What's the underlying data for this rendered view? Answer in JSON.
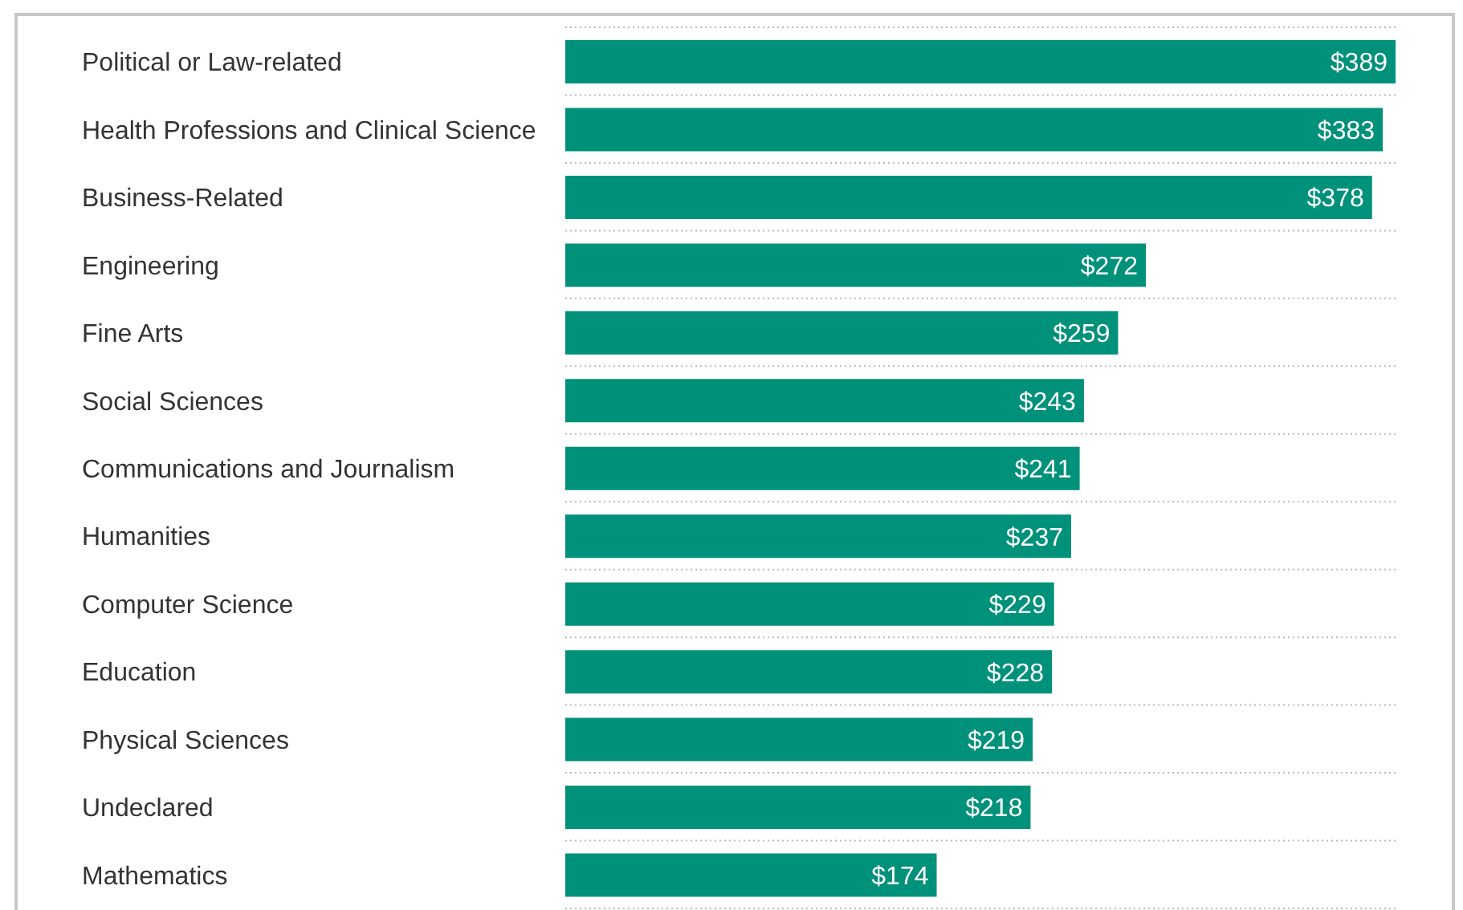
{
  "chart_data": {
    "type": "bar",
    "orientation": "horizontal",
    "categories": [
      "Political or Law-related",
      "Health Professions and Clinical Science",
      "Business-Related",
      "Engineering",
      "Fine Arts",
      "Social Sciences",
      "Communications and Journalism",
      "Humanities",
      "Computer Science",
      "Education",
      "Physical Sciences",
      "Undeclared",
      "Mathematics"
    ],
    "values": [
      389,
      383,
      378,
      272,
      259,
      243,
      241,
      237,
      229,
      228,
      219,
      218,
      174
    ],
    "value_labels": [
      "$389",
      "$383",
      "$378",
      "$272",
      "$259",
      "$243",
      "$241",
      "$237",
      "$229",
      "$228",
      "$219",
      "$218",
      "$174"
    ],
    "color": "#00917a",
    "grid": "y"
  }
}
